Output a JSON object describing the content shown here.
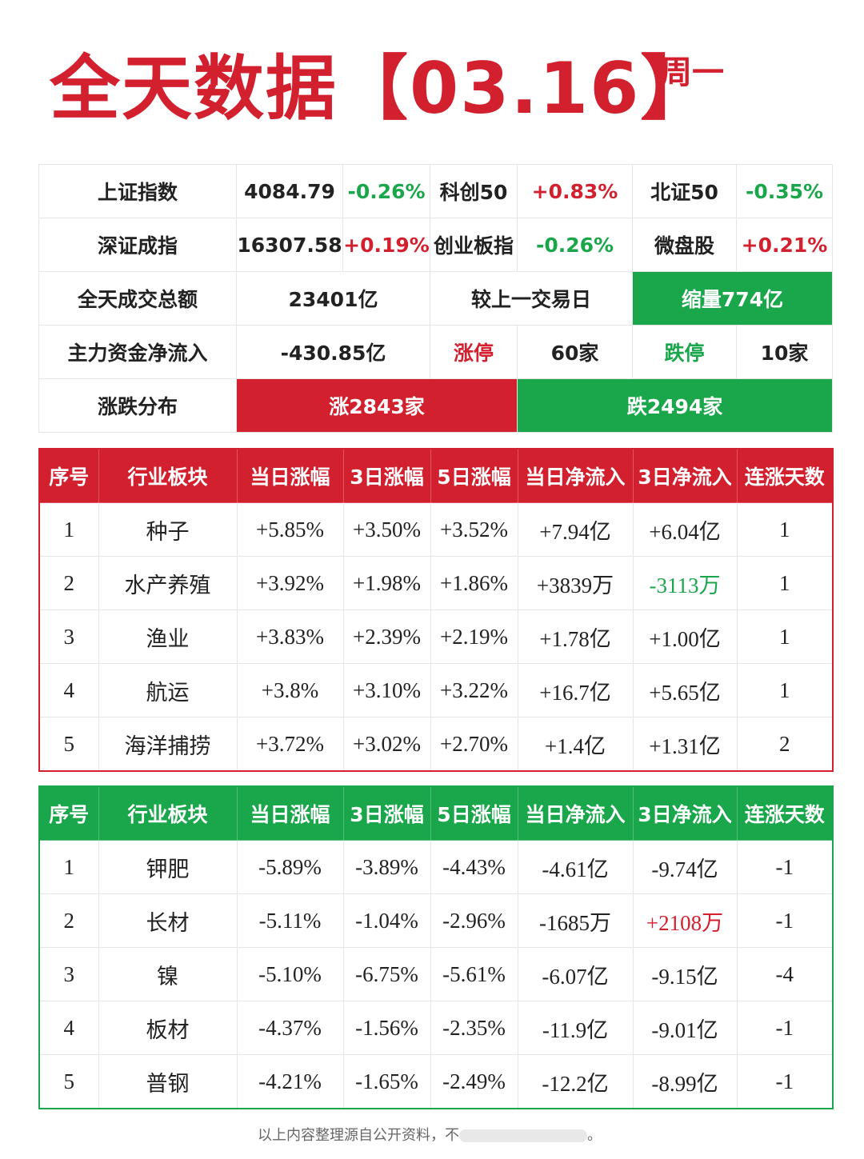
{
  "header": {
    "title": "全天数据【03.16】",
    "weekday": "周一"
  },
  "summary": {
    "rows": [
      [
        "上证指数",
        "4084.79",
        "-0.26%",
        "科创50",
        "+0.83%",
        "北证50",
        "-0.35%"
      ],
      [
        "深证成指",
        "16307.58",
        "+0.19%",
        "创业板指",
        "-0.26%",
        "微盘股",
        "+0.21%"
      ],
      [
        "全天成交总额",
        "23401亿",
        "较上一交易日",
        "缩量774亿"
      ],
      [
        "主力资金净流入",
        "-430.85亿",
        "涨停",
        "60家",
        "跌停",
        "10家"
      ],
      [
        "涨跌分布",
        "涨2843家",
        "跌2494家"
      ]
    ]
  },
  "gainers": {
    "columns": [
      "序号",
      "行业板块",
      "当日涨幅",
      "3日涨幅",
      "5日涨幅",
      "当日净流入",
      "3日净流入",
      "连涨天数"
    ],
    "rows": [
      [
        "1",
        "种子",
        "+5.85%",
        "+3.50%",
        "+3.52%",
        "+7.94亿",
        "+6.04亿",
        "1"
      ],
      [
        "2",
        "水产养殖",
        "+3.92%",
        "+1.98%",
        "+1.86%",
        "+3839万",
        "-3113万",
        "1"
      ],
      [
        "3",
        "渔业",
        "+3.83%",
        "+2.39%",
        "+2.19%",
        "+1.78亿",
        "+1.00亿",
        "1"
      ],
      [
        "4",
        "航运",
        "+3.8%",
        "+3.10%",
        "+3.22%",
        "+16.7亿",
        "+5.65亿",
        "1"
      ],
      [
        "5",
        "海洋捕捞",
        "+3.72%",
        "+3.02%",
        "+2.70%",
        "+1.4亿",
        "+1.31亿",
        "2"
      ]
    ]
  },
  "losers": {
    "columns": [
      "序号",
      "行业板块",
      "当日涨幅",
      "3日涨幅",
      "5日涨幅",
      "当日净流入",
      "3日净流入",
      "连涨天数"
    ],
    "rows": [
      [
        "1",
        "钾肥",
        "-5.89%",
        "-3.89%",
        "-4.43%",
        "-4.61亿",
        "-9.74亿",
        "-1"
      ],
      [
        "2",
        "长材",
        "-5.11%",
        "-1.04%",
        "-2.96%",
        "-1685万",
        "+2108万",
        "-1"
      ],
      [
        "3",
        "镍",
        "-5.10%",
        "-6.75%",
        "-5.61%",
        "-6.07亿",
        "-9.15亿",
        "-4"
      ],
      [
        "4",
        "板材",
        "-4.37%",
        "-1.56%",
        "-2.35%",
        "-11.9亿",
        "-9.01亿",
        "-1"
      ],
      [
        "5",
        "普钢",
        "-4.21%",
        "-1.65%",
        "-2.49%",
        "-12.2亿",
        "-8.99亿",
        "-1"
      ]
    ]
  },
  "footer": {
    "text": "以上内容整理源自公开资料，不",
    "end": "。"
  }
}
